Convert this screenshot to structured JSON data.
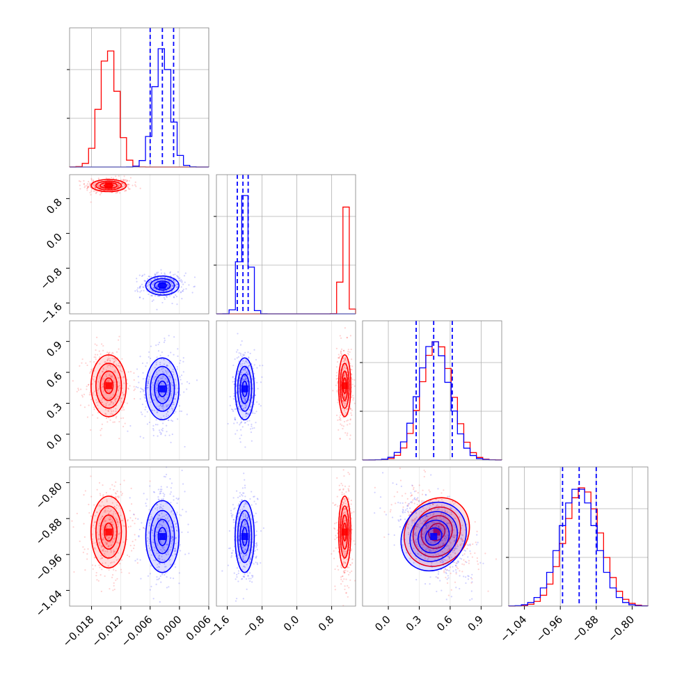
{
  "chart_data": {
    "type": "corner",
    "colors": {
      "series_a": "#ff0000",
      "series_b": "#0000ff",
      "grid": "#b0b0b0",
      "frame": "#808080"
    },
    "series": [
      {
        "color": "#ff0000",
        "center": [
          -0.0145,
          1.1,
          0.47,
          -0.91
        ],
        "sigma": [
          0.0018,
          0.07,
          0.15,
          0.04
        ]
      },
      {
        "color": "#0000ff",
        "center": [
          -0.0035,
          -1.2,
          0.44,
          -0.92
        ],
        "sigma": [
          0.0017,
          0.11,
          0.15,
          0.04
        ]
      }
    ],
    "quantiles_series_b": [
      [
        -0.006,
        -0.0035,
        -0.0012
      ],
      [
        -1.37,
        -1.24,
        -1.12
      ],
      [
        0.27,
        0.44,
        0.62
      ],
      [
        -0.955,
        -0.918,
        -0.88
      ]
    ],
    "axes": [
      {
        "range": [
          -0.0225,
          0.006
        ],
        "tick_values": [
          -0.018,
          -0.012,
          -0.006,
          0.0,
          0.006
        ],
        "tick_labels": [
          "−0.018",
          "−0.012",
          "−0.006",
          "0.000",
          "0.006"
        ]
      },
      {
        "range": [
          -1.85,
          1.35
        ],
        "tick_values": [
          -1.6,
          -0.8,
          0.0,
          0.8
        ],
        "tick_labels": [
          "−1.6",
          "−0.8",
          "0.0",
          "0.8"
        ]
      },
      {
        "range": [
          -0.25,
          1.1
        ],
        "tick_values": [
          0.0,
          0.3,
          0.6,
          0.9
        ],
        "tick_labels": [
          "0.0",
          "0.3",
          "0.6",
          "0.9"
        ]
      },
      {
        "range": [
          -1.075,
          -0.765
        ],
        "tick_values": [
          -1.04,
          -0.96,
          -0.88,
          -0.8
        ],
        "tick_labels": [
          "−1.04",
          "−0.96",
          "−0.88",
          "−0.80"
        ]
      }
    ],
    "row_tick_labels": [
      [],
      [
        "−1.6",
        "−0.8",
        "0.0",
        "0.8"
      ],
      [
        "0.0",
        "0.3",
        "0.6",
        "0.9"
      ],
      [
        "−1.04",
        "−0.96",
        "−0.88",
        "−0.80"
      ]
    ],
    "grid": true,
    "legend": "none"
  }
}
